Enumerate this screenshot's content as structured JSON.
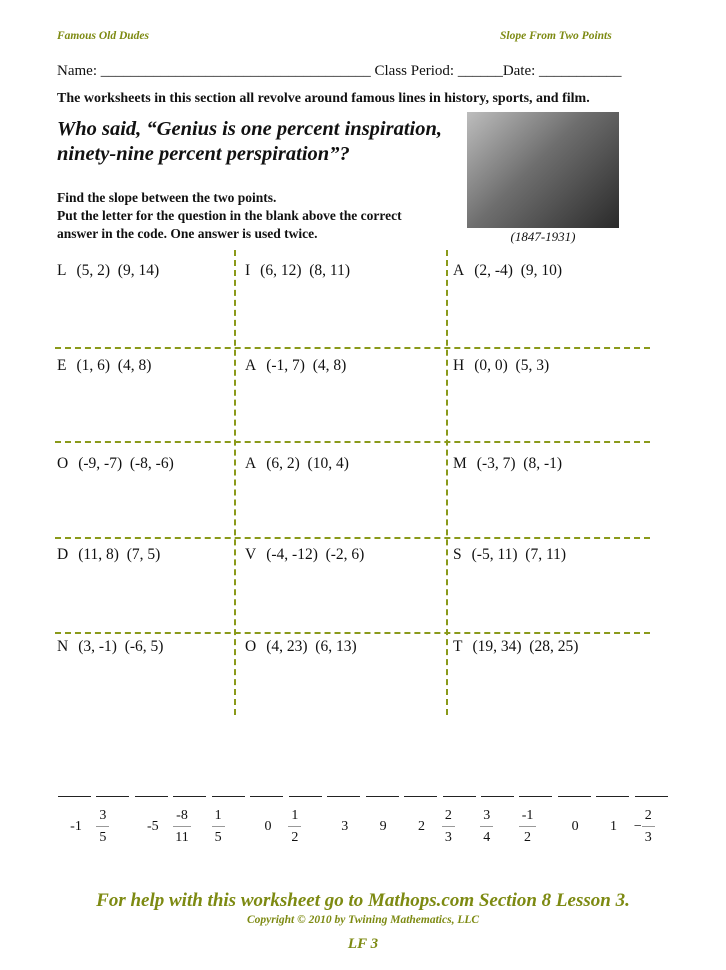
{
  "header": {
    "left": "Famous Old Dudes",
    "right": "Slope From Two Points"
  },
  "name_line": "Name: ____________________________________ Class Period: ______Date:  ___________",
  "intro": "The worksheets in this section all revolve around famous lines in history, sports, and film.",
  "quote": [
    "Who said, “Genius is one percent inspiration,",
    "ninety-nine percent perspiration”?"
  ],
  "instructions": [
    "Find the slope between the two points.",
    "Put the letter for the question in the blank above the correct",
    "answer in the code.  One answer is used twice."
  ],
  "photo": {
    "caption": "(1847-1931)"
  },
  "problems": [
    [
      {
        "letter": "L",
        "points": "(5, 2)  (9, 14)"
      },
      {
        "letter": "I",
        "points": "(6, 12)  (8, 11)"
      },
      {
        "letter": "A",
        "points": "(2, -4)  (9, 10)"
      }
    ],
    [
      {
        "letter": "E",
        "points": "(1, 6)  (4, 8)"
      },
      {
        "letter": "A",
        "points": "(-1, 7)  (4, 8)"
      },
      {
        "letter": "H",
        "points": "(0, 0)  (5, 3)"
      }
    ],
    [
      {
        "letter": "O",
        "points": "(-9, -7)  (-8, -6)"
      },
      {
        "letter": "A",
        "points": "(6, 2)  (10, 4)"
      },
      {
        "letter": "M",
        "points": "(-3, 7)  (8, -1)"
      }
    ],
    [
      {
        "letter": "D",
        "points": "(11, 8)  (7, 5)"
      },
      {
        "letter": "V",
        "points": "(-4, -12)  (-2, 6)"
      },
      {
        "letter": "S",
        "points": "(-5, 11)  (7, 11)"
      }
    ],
    [
      {
        "letter": "N",
        "points": "(3, -1)  (-6, 5)"
      },
      {
        "letter": "O",
        "points": "(4, 23)  (6, 13)"
      },
      {
        "letter": "T",
        "points": "(19, 34)  (28, 25)"
      }
    ]
  ],
  "answer_code": [
    {
      "text": "-1"
    },
    {
      "num": "3",
      "den": "5"
    },
    {
      "text": "-5"
    },
    {
      "num": "-8",
      "den": "11"
    },
    {
      "num": "1",
      "den": "5"
    },
    {
      "text": "0"
    },
    {
      "num": "1",
      "den": "2"
    },
    {
      "text": "3"
    },
    {
      "text": "9"
    },
    {
      "text": "2"
    },
    {
      "num": "2",
      "den": "3"
    },
    {
      "num": "3",
      "den": "4"
    },
    {
      "num": "-1",
      "den": "2"
    },
    {
      "text": "0"
    },
    {
      "text": "1"
    },
    {
      "sign": "−",
      "num": "2",
      "den": "3"
    }
  ],
  "footer": {
    "help": "For help with this worksheet go to Mathops.com Section 8 Lesson 3.",
    "copyright": "Copyright © 2010 by Twining Mathematics, LLC",
    "code": "LF 3"
  },
  "colors": {
    "accent": "#7d8a12",
    "grid": "#8a9a1a"
  }
}
